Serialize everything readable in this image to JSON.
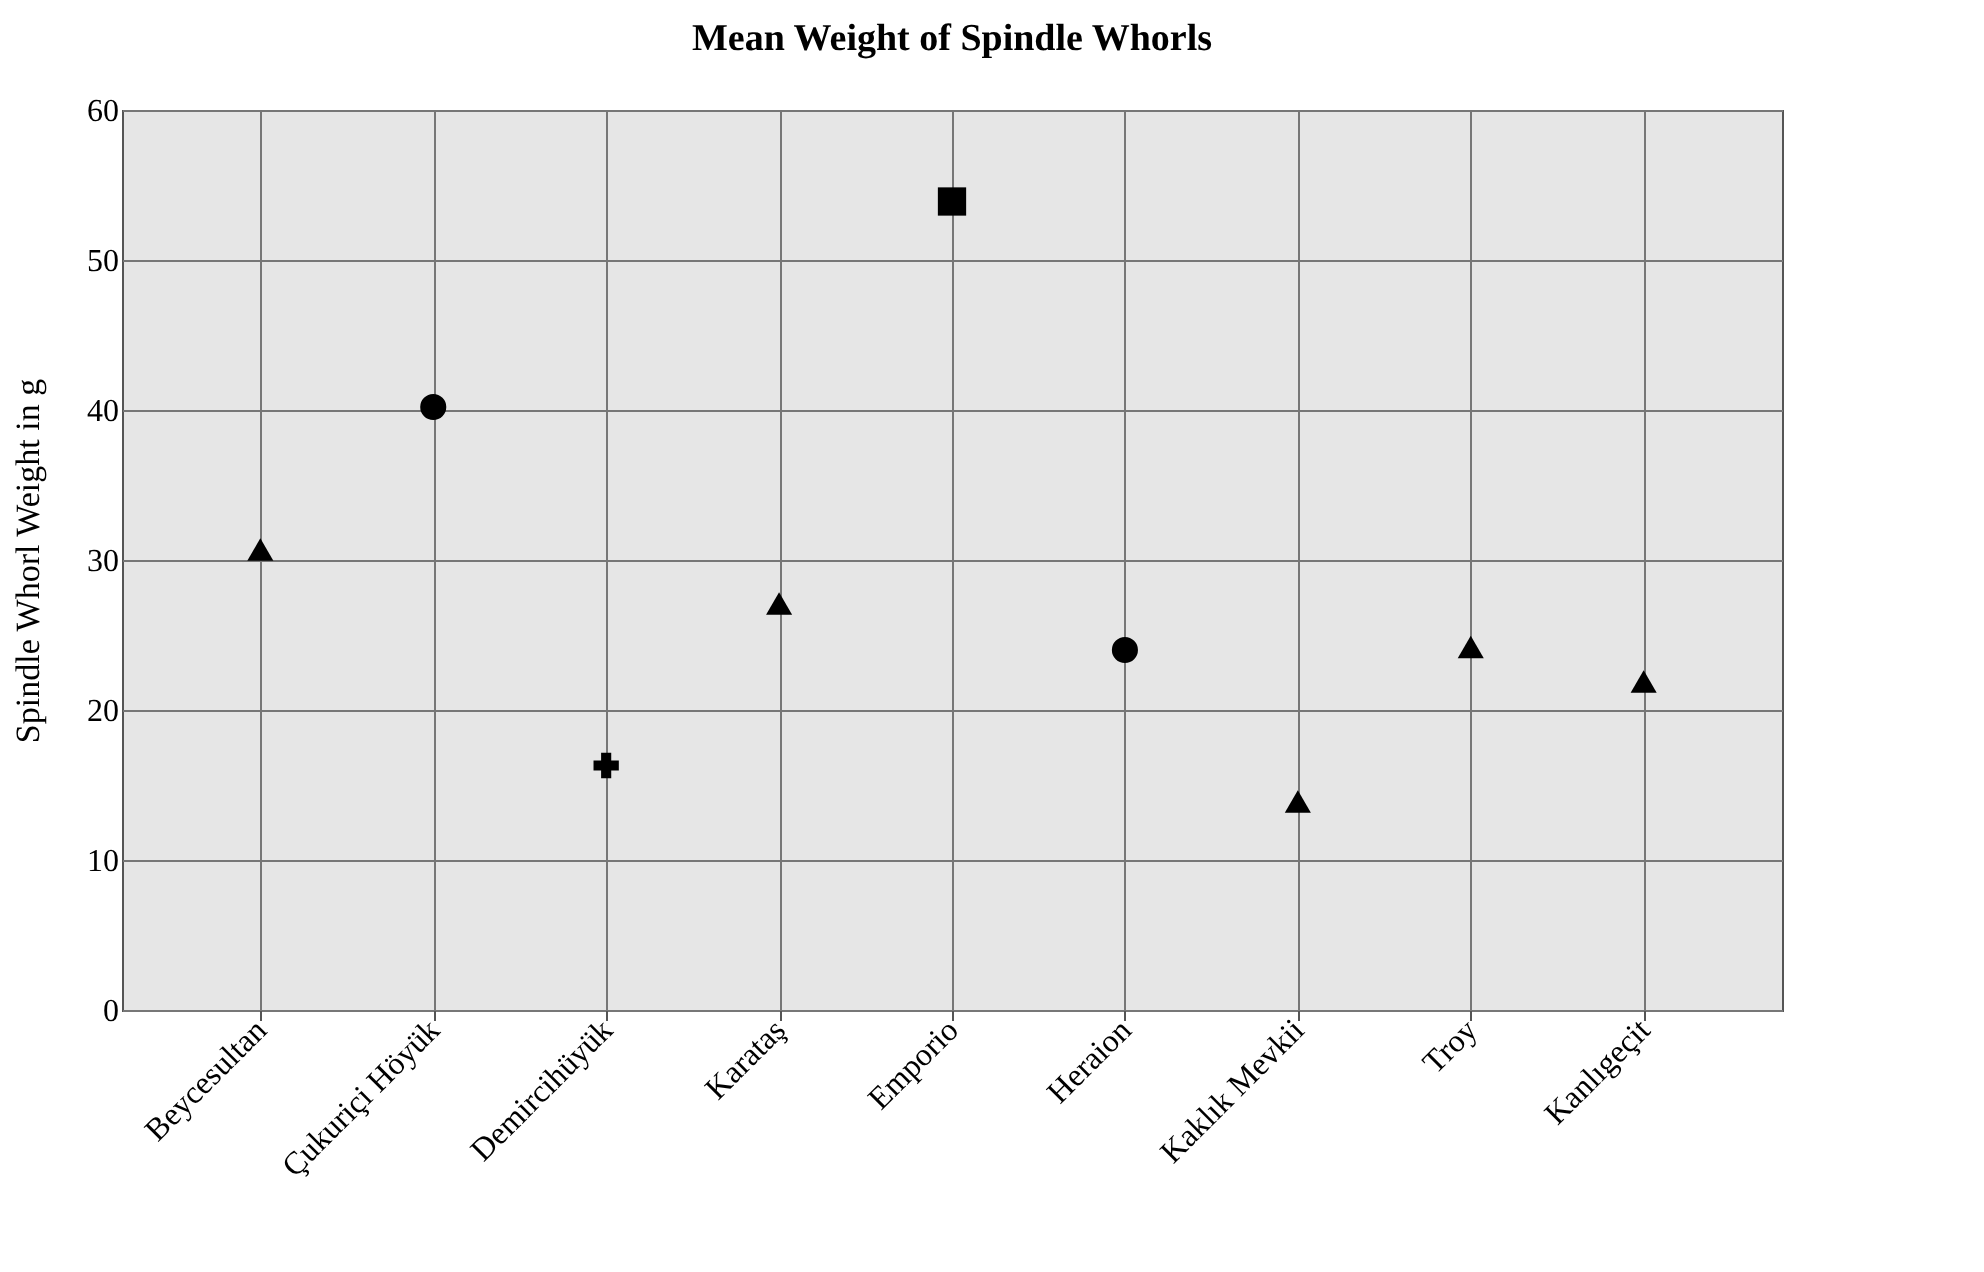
{
  "chart_data": {
    "type": "scatter",
    "title": "Mean Weight of Spindle Whorls",
    "ylabel": "Spindle Whorl Weight in g",
    "categories": [
      "Beycesultan",
      "Çukuriçi Höyük",
      "Demircihüyük",
      "Karataş",
      "Emporio",
      "Heraion",
      "Kaklık Mevkii",
      "Troy",
      "Kanlıgeçit"
    ],
    "series": [
      {
        "color": "#000000",
        "marker": "triangle",
        "x": [
          "Beycesultan",
          "Karataş",
          "Kaklık Mevkii",
          "Troy",
          "Kanlıgeçit"
        ],
        "values": [
          30.7,
          27.1,
          13.9,
          24.2,
          21.9
        ]
      },
      {
        "color": "#000000",
        "marker": "circle",
        "x": [
          "Çukuriçi Höyük",
          "Heraion"
        ],
        "values": [
          40.2,
          24.0
        ]
      },
      {
        "color": "#000000",
        "marker": "cross",
        "x": [
          "Demircihüyük"
        ],
        "values": [
          16.3
        ]
      },
      {
        "color": "#000000",
        "marker": "square",
        "x": [
          "Emporio"
        ],
        "values": [
          53.9
        ]
      }
    ],
    "ylim": [
      0,
      60
    ],
    "yticks": [
      0,
      10,
      20,
      30,
      40,
      50,
      60
    ],
    "grid": true
  }
}
